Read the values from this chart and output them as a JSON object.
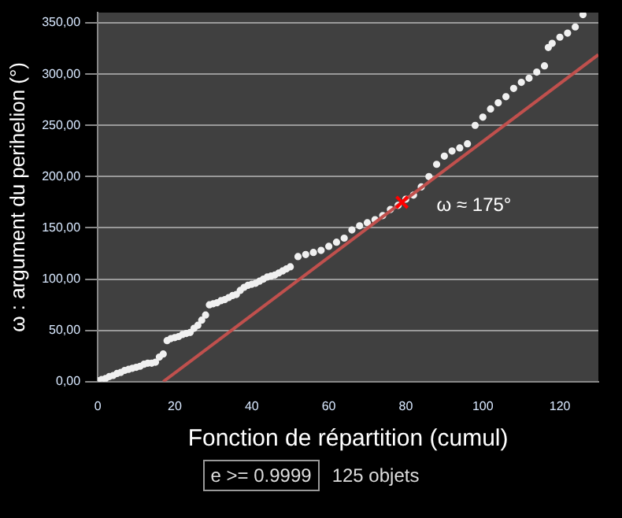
{
  "chart_data": {
    "type": "scatter",
    "xlabel": "Fonction de répartition (cumul)",
    "ylabel": "ω : argument du perihelion (°)",
    "xlim": [
      0,
      130
    ],
    "ylim": [
      0,
      360
    ],
    "xticks": [
      0,
      20,
      40,
      60,
      80,
      100,
      120
    ],
    "yticks": [
      {
        "value": 0,
        "label": "0,00"
      },
      {
        "value": 50,
        "label": "50,00"
      },
      {
        "value": 100,
        "label": "100,00"
      },
      {
        "value": 150,
        "label": "150,00"
      },
      {
        "value": 200,
        "label": "200,00"
      },
      {
        "value": 250,
        "label": "250,00"
      },
      {
        "value": 300,
        "label": "300,00"
      },
      {
        "value": 350,
        "label": "350,00"
      }
    ],
    "grid": "y",
    "legend": false,
    "series": [
      {
        "type": "scatter",
        "marker": "circle",
        "color": "#f0f0f0",
        "x": [
          0,
          1,
          2,
          3,
          4,
          5,
          6,
          7,
          8,
          9,
          10,
          11,
          12,
          13,
          14,
          15,
          16,
          17,
          18,
          19,
          20,
          21,
          22,
          23,
          24,
          25,
          26,
          27,
          28,
          29,
          30,
          31,
          32,
          33,
          34,
          35,
          36,
          37,
          38,
          39,
          40,
          41,
          42,
          43,
          44,
          45,
          46,
          47,
          48,
          49,
          50,
          52,
          54,
          56,
          58,
          60,
          62,
          64,
          66,
          68,
          70,
          72,
          74,
          76,
          78,
          80,
          82,
          84,
          86,
          88,
          90,
          92,
          94,
          96,
          98,
          100,
          102,
          104,
          106,
          108,
          110,
          112,
          114,
          116,
          117,
          118,
          120,
          122,
          124,
          126
        ],
        "values": [
          1,
          2,
          3,
          5,
          6,
          8,
          9,
          11,
          12,
          13,
          14,
          15,
          17,
          18,
          18,
          19,
          24,
          27,
          40,
          42,
          43,
          44,
          46,
          47,
          48,
          52,
          55,
          60,
          65,
          75,
          76,
          77,
          79,
          80,
          82,
          84,
          85,
          89,
          92,
          94,
          95,
          96,
          98,
          100,
          102,
          103,
          104,
          106,
          108,
          110,
          112,
          122,
          124,
          126,
          128,
          132,
          136,
          140,
          148,
          152,
          155,
          158,
          162,
          168,
          172,
          178,
          182,
          190,
          200,
          212,
          220,
          225,
          228,
          232,
          250,
          258,
          266,
          272,
          278,
          286,
          292,
          296,
          302,
          308,
          326,
          330,
          336,
          340,
          346,
          358
        ]
      },
      {
        "type": "line",
        "marker": "none",
        "color": "#c0504d",
        "x": [
          17,
          130
        ],
        "values": [
          0,
          319
        ]
      },
      {
        "type": "scatter",
        "marker": "cross",
        "color": "#ff0000",
        "x": [
          79
        ],
        "values": [
          175
        ]
      }
    ],
    "annotations": [
      {
        "text": "ω ≈ 175°",
        "x": 79,
        "y": 175
      },
      "e >= 0.9999",
      "125 objets"
    ]
  }
}
